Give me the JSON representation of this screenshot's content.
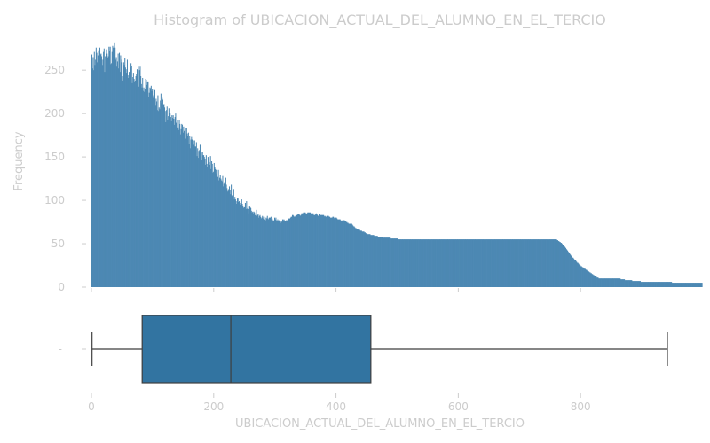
{
  "chart_data": [
    {
      "type": "bar",
      "title": "Histogram of UBICACION_ACTUAL_DEL_ALUMNO_EN_EL_TERCIO",
      "xlabel": "UBICACION_ACTUAL_DEL_ALUMNO_EN_EL_TERCIO",
      "ylabel": "Frequency",
      "xlim": [
        0,
        942
      ],
      "ylim": [
        0,
        290
      ],
      "bin_width": 1,
      "bin_start": 0,
      "bar_color": "#4c88b3",
      "x_ticks": [
        "0",
        "200",
        "400",
        "600",
        "800"
      ],
      "y_ticks": [
        "0",
        "50",
        "100",
        "150",
        "200",
        "250"
      ],
      "values": [
        268,
        252,
        265,
        250,
        271,
        256,
        262,
        276,
        270,
        259,
        267,
        273,
        264,
        276,
        268,
        269,
        266,
        256,
        262,
        271,
        275,
        248,
        266,
        258,
        274,
        269,
        264,
        266,
        277,
        272,
        277,
        257,
        258,
        271,
        278,
        276,
        268,
        282,
        276,
        262,
        265,
        254,
        260,
        269,
        252,
        270,
        248,
        267,
        259,
        262,
        243,
        238,
        259,
        256,
        264,
        253,
        251,
        247,
        262,
        241,
        244,
        248,
        246,
        253,
        258,
        255,
        235,
        242,
        247,
        240,
        237,
        238,
        243,
        246,
        251,
        239,
        254,
        231,
        250,
        254,
        243,
        234,
        230,
        241,
        226,
        230,
        225,
        228,
        240,
        239,
        233,
        237,
        237,
        219,
        224,
        230,
        229,
        232,
        226,
        228,
        218,
        221,
        214,
        227,
        209,
        217,
        214,
        204,
        221,
        203,
        207,
        205,
        215,
        223,
        212,
        218,
        216,
        210,
        211,
        207,
        203,
        190,
        204,
        208,
        192,
        197,
        206,
        201,
        200,
        196,
        191,
        198,
        195,
        198,
        194,
        187,
        196,
        200,
        189,
        190,
        192,
        184,
        181,
        193,
        188,
        176,
        182,
        188,
        187,
        178,
        185,
        180,
        170,
        183,
        171,
        183,
        177,
        174,
        178,
        165,
        174,
        160,
        170,
        173,
        170,
        158,
        169,
        164,
        169,
        162,
        162,
        167,
        151,
        160,
        149,
        157,
        158,
        164,
        151,
        155,
        146,
        156,
        152,
        152,
        150,
        148,
        141,
        152,
        142,
        138,
        150,
        143,
        144,
        141,
        151,
        136,
        145,
        142,
        132,
        133,
        143,
        138,
        136,
        135,
        131,
        123,
        127,
        135,
        123,
        126,
        129,
        125,
        123,
        122,
        128,
        116,
        119,
        121,
        123,
        126,
        118,
        114,
        110,
        111,
        113,
        116,
        112,
        107,
        118,
        105,
        106,
        106,
        113,
        101,
        104,
        101,
        99,
        96,
        102,
        102,
        98,
        99,
        95,
        97,
        98,
        101,
        96,
        94,
        91,
        92,
        92,
        97,
        90,
        99,
        90,
        91,
        85,
        90,
        93,
        92,
        91,
        88,
        86,
        87,
        85,
        87,
        86,
        83,
        81,
        89,
        82,
        83,
        84,
        80,
        82,
        83,
        81,
        79,
        80,
        82,
        79,
        81,
        81,
        78,
        77,
        80,
        79,
        82,
        79,
        78,
        80,
        80,
        80,
        81,
        78,
        79,
        77,
        76,
        77,
        80,
        78,
        80,
        77,
        76,
        78,
        76,
        77,
        76,
        76,
        74,
        76,
        75,
        78,
        77,
        78,
        77,
        76,
        76,
        77,
        77,
        77,
        78,
        79,
        79,
        79,
        80,
        81,
        81,
        83,
        83,
        82,
        81,
        81,
        82,
        83,
        83,
        83,
        84,
        84,
        84,
        83,
        82,
        83,
        85,
        85,
        85,
        86,
        86,
        86,
        86,
        85,
        84,
        85,
        86,
        86,
        86,
        86,
        86,
        85,
        85,
        85,
        85,
        85,
        83,
        83,
        83,
        84,
        85,
        84,
        83,
        82,
        82,
        83,
        84,
        83,
        83,
        83,
        83,
        83,
        83,
        82,
        81,
        82,
        81,
        81,
        82,
        82,
        82,
        81,
        81,
        80,
        80,
        80,
        80,
        81,
        81,
        80,
        79,
        80,
        80,
        80,
        79,
        78,
        78,
        78,
        78,
        78,
        77,
        76,
        76,
        77,
        77,
        77,
        77,
        76,
        76,
        75,
        75,
        74,
        74,
        73,
        73,
        73,
        73,
        73,
        73,
        72,
        71,
        70,
        70,
        69,
        68,
        68,
        67,
        67,
        67,
        66,
        66,
        66,
        65,
        65,
        65,
        64,
        64,
        64,
        64,
        63,
        63,
        62,
        62,
        62,
        61,
        61,
        61,
        61,
        61,
        60,
        60,
        60,
        60,
        60,
        60,
        59,
        59,
        59,
        59,
        59,
        59,
        58,
        58,
        58,
        58,
        58,
        58,
        58,
        58,
        58,
        57,
        57,
        57,
        57,
        57,
        57,
        57,
        57,
        57,
        57,
        57,
        57,
        56,
        56,
        56,
        56,
        56,
        56,
        56,
        56,
        56,
        56,
        56,
        56,
        55,
        55,
        55,
        55,
        55,
        55,
        55,
        55,
        55,
        55,
        55,
        55,
        55,
        55,
        55,
        55,
        55,
        55,
        55,
        55,
        55,
        55,
        55,
        55,
        55,
        55,
        55,
        55,
        55,
        55,
        55,
        55,
        55,
        55,
        55,
        55,
        55,
        55,
        55,
        55,
        55,
        55,
        55,
        55,
        55,
        55,
        55,
        55,
        55,
        55,
        55,
        55,
        55,
        55,
        55,
        55,
        55,
        55,
        55,
        55,
        55,
        55,
        55,
        55,
        55,
        55,
        55,
        55,
        55,
        55,
        55,
        55,
        55,
        55,
        55,
        55,
        55,
        55,
        55,
        55,
        55,
        55,
        55,
        55,
        55,
        55,
        55,
        55,
        55,
        55,
        55,
        55,
        55,
        55,
        55,
        55,
        55,
        55,
        55,
        55,
        55,
        55,
        55,
        55,
        55,
        55,
        55,
        55,
        55,
        55,
        55,
        55,
        55,
        55,
        55,
        55,
        55,
        55,
        55,
        55,
        55,
        55,
        55,
        55,
        55,
        55,
        55,
        55,
        55,
        55,
        55,
        55,
        55,
        55,
        55,
        55,
        55,
        55,
        55,
        55,
        55,
        55,
        55,
        55,
        55,
        55,
        55,
        55,
        55,
        55,
        55,
        55,
        55,
        55,
        55,
        55,
        55,
        55,
        55,
        55,
        55,
        55,
        55,
        55,
        55,
        55,
        55,
        55,
        55,
        55,
        55,
        55,
        55,
        55,
        55,
        55,
        55,
        55,
        55,
        55,
        55,
        55,
        55,
        55,
        55,
        55,
        55,
        55,
        55,
        55,
        55,
        55,
        55,
        55,
        55,
        55,
        55,
        55,
        55,
        55,
        55,
        55,
        55,
        55,
        55,
        55,
        55,
        55,
        55,
        55,
        55,
        55,
        55,
        55,
        55,
        55,
        55,
        55,
        55,
        55,
        55,
        55,
        55,
        55,
        55,
        55,
        55,
        55,
        55,
        55,
        55,
        55,
        55,
        55,
        55,
        55,
        55,
        55,
        55,
        55,
        55,
        55,
        55,
        55,
        55,
        55,
        55,
        55,
        55,
        55,
        55,
        55,
        55,
        55,
        55,
        55,
        55,
        55,
        55,
        55,
        54,
        54,
        53,
        53,
        52,
        52,
        51,
        51,
        50,
        49,
        49,
        48,
        47,
        46,
        45,
        44,
        43,
        42,
        41,
        40,
        39,
        38,
        37,
        36,
        35,
        34,
        34,
        33,
        32,
        31,
        31,
        30,
        29,
        28,
        28,
        27,
        26,
        26,
        25,
        24,
        24,
        23,
        23,
        22,
        22,
        21,
        21,
        20,
        20,
        19,
        19,
        18,
        18,
        17,
        17,
        16,
        16,
        15,
        15,
        14,
        14,
        13,
        13,
        12,
        12,
        11,
        11,
        11,
        10,
        10,
        10,
        10,
        10,
        10,
        10,
        10,
        10,
        10,
        10,
        10,
        10,
        10,
        10,
        10,
        10,
        10,
        10,
        10,
        10,
        10,
        10,
        10,
        10,
        10,
        10,
        10,
        10,
        10,
        10,
        10,
        10,
        10,
        10,
        10,
        9,
        9,
        9,
        9,
        9,
        9,
        9,
        8,
        8,
        8,
        8,
        8,
        8,
        8,
        8,
        8,
        8,
        8,
        8,
        7,
        7,
        7,
        7,
        7,
        7,
        7,
        7,
        7,
        7,
        7,
        7,
        7,
        7,
        6,
        6,
        6,
        6,
        6,
        6,
        6,
        6,
        6,
        6,
        6,
        6,
        6,
        6,
        6,
        6,
        6,
        6,
        6,
        6,
        6,
        6,
        6,
        6,
        6,
        6,
        6,
        6,
        6,
        6,
        6,
        6,
        6,
        6,
        6,
        6,
        6,
        6,
        6,
        6,
        6,
        6,
        6,
        6,
        6,
        6,
        6,
        6,
        6,
        6,
        6,
        5,
        5,
        5,
        5,
        5,
        5,
        5,
        5,
        5,
        5,
        5,
        5,
        5,
        5,
        5,
        5,
        5,
        5,
        5,
        5,
        5,
        5,
        5,
        5,
        5,
        5,
        5,
        5,
        5,
        5,
        5,
        5,
        5,
        5,
        5,
        5,
        5,
        5,
        5,
        5,
        5,
        5,
        5,
        5,
        5,
        5,
        5,
        5,
        5,
        5
      ]
    },
    {
      "type": "box",
      "min": 1,
      "q1": 83,
      "median": 228,
      "q3": 457,
      "max": 942,
      "y_tick": "-",
      "box_color": "#3274a1",
      "line_color": "#3f3f3f"
    }
  ]
}
